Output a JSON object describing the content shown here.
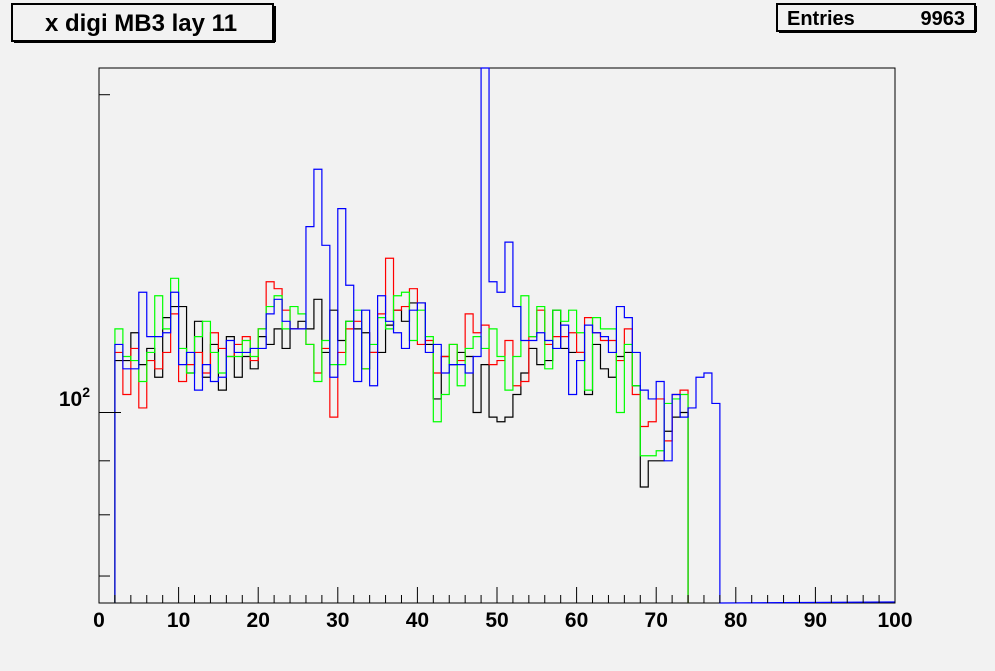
{
  "title": "x digi MB3 lay 11",
  "stats": {
    "entries_label": "Entries",
    "entries_value": "9963"
  },
  "chart_data": {
    "type": "histogram",
    "title": "x digi MB3 lay 11",
    "xlabel": "",
    "ylabel": "",
    "xlim": [
      0,
      100
    ],
    "ylim": [
      66,
      212
    ],
    "y_log_scale": true,
    "x_ticks": [
      0,
      10,
      20,
      30,
      40,
      50,
      60,
      70,
      80,
      90,
      100
    ],
    "y_tick_label": {
      "base": "10",
      "exp": "2",
      "value": 100
    },
    "grid": false,
    "bin_width": 1,
    "series": [
      {
        "color": "#000000",
        "x_start": 2,
        "values": [
          112,
          112,
          119,
          111,
          115,
          108,
          123,
          126,
          126,
          109,
          122,
          108,
          116,
          105,
          118,
          108,
          113,
          110,
          118,
          116,
          120,
          115,
          120,
          122,
          120,
          128,
          114,
          125,
          117,
          122,
          120,
          119,
          114,
          114,
          121,
          125,
          122,
          127,
          127,
          116,
          103,
          113,
          111,
          114,
          113,
          100,
          111,
          99,
          98,
          99,
          104,
          109,
          115,
          111,
          112,
          125,
          115,
          114,
          114,
          104,
          116,
          110,
          108,
          113,
          114,
          106,
          85,
          90,
          90,
          96,
          99,
          100
        ]
      },
      {
        "color": "#ff0000",
        "x_start": 2,
        "values": [
          114,
          104,
          115,
          101,
          112,
          110,
          114,
          124,
          107,
          111,
          114,
          109,
          119,
          115,
          113,
          116,
          118,
          112,
          120,
          133,
          131,
          125,
          120,
          120,
          116,
          109,
          115,
          99,
          114,
          120,
          122,
          110,
          114,
          124,
          140,
          125,
          126,
          131,
          116,
          117,
          109,
          113,
          116,
          112,
          124,
          119,
          121,
          111,
          112,
          117,
          106,
          107,
          118,
          125,
          116,
          118,
          118,
          119,
          114,
          123,
          119,
          117,
          117,
          112,
          120,
          104,
          97,
          98,
          103,
          94,
          104,
          105
        ]
      },
      {
        "color": "#00ff00",
        "x_start": 2,
        "values": [
          120,
          113,
          112,
          107,
          114,
          129,
          120,
          134,
          115,
          109,
          118,
          122,
          114,
          109,
          113,
          113,
          117,
          113,
          120,
          126,
          129,
          120,
          126,
          124,
          116,
          107,
          117,
          111,
          111,
          122,
          125,
          110,
          116,
          123,
          120,
          129,
          130,
          117,
          125,
          118,
          98,
          104,
          116,
          106,
          115,
          118,
          115,
          120,
          113,
          105,
          113,
          129,
          118,
          126,
          110,
          125,
          122,
          125,
          119,
          105,
          123,
          120,
          120,
          100,
          116,
          106,
          91,
          91,
          92,
          102,
          103,
          104
        ]
      },
      {
        "color": "#0000ff",
        "x_start": 2,
        "values": [
          116,
          110,
          110,
          130,
          118,
          118,
          119,
          130,
          111,
          114,
          105,
          111,
          107,
          108,
          117,
          114,
          114,
          115,
          115,
          124,
          128,
          122,
          120,
          120,
          150,
          170,
          144,
          108,
          156,
          132,
          107,
          125,
          106,
          129,
          122,
          119,
          115,
          125,
          127,
          114,
          116,
          109,
          111,
          111,
          109,
          113,
          213,
          133,
          130,
          145,
          126,
          117,
          117,
          119,
          117,
          115,
          121,
          104,
          112,
          121,
          119,
          118,
          114,
          126,
          123,
          114,
          105,
          103,
          107,
          90,
          104,
          99,
          101,
          108,
          109,
          102
        ]
      }
    ]
  }
}
